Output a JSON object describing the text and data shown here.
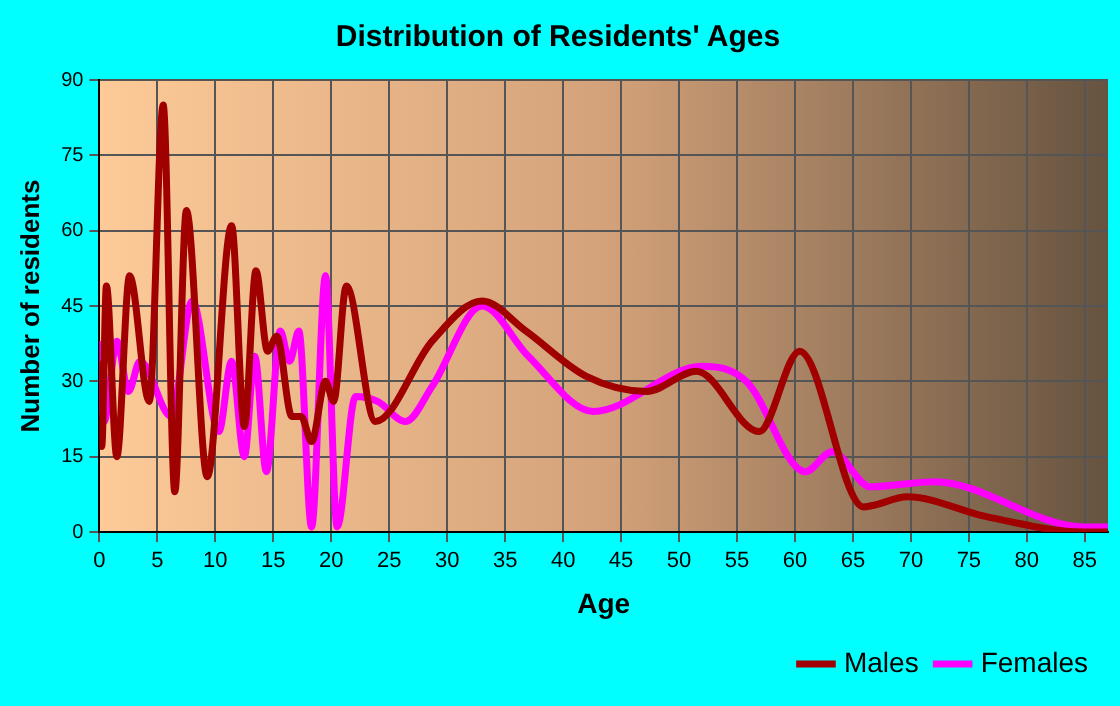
{
  "chart_data": {
    "type": "line",
    "title": "Distribution of Residents' Ages",
    "xlabel": "Age",
    "ylabel": "Number of residents",
    "xlim": [
      0,
      87
    ],
    "xticks": [
      0,
      5,
      10,
      15,
      20,
      25,
      30,
      35,
      40,
      45,
      50,
      55,
      60,
      65,
      70,
      75,
      80,
      85
    ],
    "ylim": [
      0,
      90
    ],
    "yticks": [
      0,
      15,
      30,
      45,
      60,
      75,
      90
    ],
    "grid": true,
    "legend": "bottom right",
    "marker": "none",
    "line_style": "solid",
    "series": [
      {
        "name": "Males",
        "color": "#a00000",
        "x": [
          0,
          0.2,
          0.6,
          1.5,
          2.6,
          4.3,
          5.5,
          6.5,
          7.5,
          9.3,
          11.4,
          12.5,
          13.5,
          14.5,
          15.3,
          16.6,
          17.4,
          18.3,
          19.5,
          20.2,
          21.3,
          23.8,
          28.7,
          33,
          36.8,
          42,
          47.2,
          51.5,
          56.9,
          60.4,
          65.9,
          69.7,
          76.6,
          85,
          87
        ],
        "values": [
          34,
          17,
          49,
          15,
          51,
          26,
          85,
          8,
          64,
          11,
          61,
          21,
          52,
          36,
          39,
          23,
          23,
          18,
          30,
          26,
          49,
          22,
          38,
          46,
          40,
          31,
          28,
          32,
          20,
          36,
          5,
          7,
          3,
          0,
          0
        ]
      },
      {
        "name": "Females",
        "color": "#ff00ff",
        "x": [
          0,
          0.4,
          1.5,
          2.5,
          3.5,
          6.2,
          8,
          10.3,
          11.4,
          12.5,
          13.4,
          14.4,
          15.6,
          16.4,
          17.2,
          18.3,
          19.5,
          20.5,
          22.1,
          24,
          26.4,
          28.7,
          33,
          37,
          42.6,
          52,
          55.8,
          60.9,
          63.2,
          66.5,
          72,
          85,
          87
        ],
        "values": [
          38,
          22,
          38,
          28,
          34,
          23,
          46,
          20,
          34,
          15,
          35,
          12,
          40,
          34,
          40,
          1,
          51,
          1,
          27,
          26,
          22,
          29,
          45,
          35,
          24,
          33,
          30,
          12,
          16,
          9,
          10,
          1,
          1
        ]
      }
    ]
  }
}
